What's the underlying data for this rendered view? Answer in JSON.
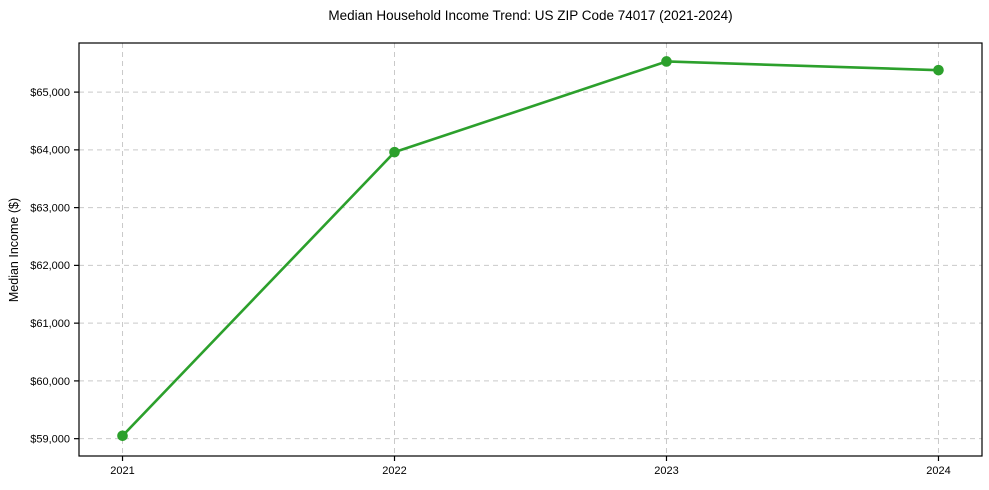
{
  "title": "Median Household Income Trend: US ZIP Code 74017 (2021-2024)",
  "chart_data": {
    "type": "line",
    "title": "Median Household Income Trend: US ZIP Code 74017 (2021-2024)",
    "xlabel": "",
    "ylabel": "Median Income ($)",
    "x": [
      2021,
      2022,
      2023,
      2024
    ],
    "series": [
      {
        "name": "Median Household Income",
        "values": [
          59050,
          63960,
          65530,
          65380
        ],
        "color": "#2ca02c"
      }
    ],
    "xticks": [
      2021,
      2022,
      2023,
      2024
    ],
    "xtick_labels": [
      "2021",
      "2022",
      "2023",
      "2024"
    ],
    "yticks": [
      59000,
      60000,
      61000,
      62000,
      63000,
      64000,
      65000
    ],
    "ytick_labels": [
      "$59,000",
      "$60,000",
      "$61,000",
      "$62,000",
      "$63,000",
      "$64,000",
      "$65,000"
    ],
    "xlim": [
      2020.84,
      2024.16
    ],
    "ylim": [
      58700,
      65850
    ],
    "grid": true,
    "grid_style": "dashed",
    "grid_color": "#c9c9c9",
    "axis_color": "#000000",
    "background_color": "#ffffff",
    "legend": "none",
    "marker": "circle",
    "marker_radius": 5.3,
    "line_width": 2.6
  }
}
